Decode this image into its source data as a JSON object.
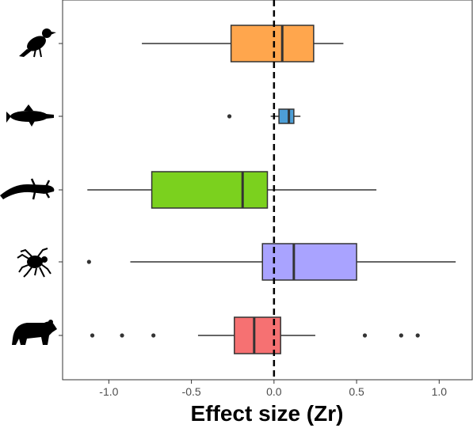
{
  "chart_data": {
    "type": "boxplot",
    "orientation": "horizontal",
    "title": "",
    "xlabel": "Effect size (Zr)",
    "ylabel": "",
    "xlim": [
      -1.28,
      1.2
    ],
    "xticks": [
      -1.0,
      -0.5,
      0.0,
      0.5,
      1.0
    ],
    "xtick_labels": [
      "-1.0",
      "-0.5",
      "0.0",
      "0.5",
      "1.0"
    ],
    "reference_line": {
      "x": 0,
      "style": "dashed"
    },
    "grid": false,
    "legend": "none",
    "series": [
      {
        "icon": "bird-icon",
        "color": "#FFA64D",
        "whisker_low": -0.8,
        "q1": -0.26,
        "median": 0.05,
        "q3": 0.24,
        "whisker_high": 0.42,
        "outliers": []
      },
      {
        "icon": "fish-icon",
        "color": "#4D9ED6",
        "whisker_low": -0.02,
        "q1": 0.03,
        "median": 0.09,
        "q3": 0.12,
        "whisker_high": 0.16,
        "outliers": [
          -0.27
        ]
      },
      {
        "icon": "salamander-icon",
        "color": "#7BD11E",
        "whisker_low": -1.13,
        "q1": -0.74,
        "median": -0.19,
        "q3": -0.04,
        "whisker_high": 0.62,
        "outliers": []
      },
      {
        "icon": "spider-icon",
        "color": "#A9A3FF",
        "whisker_low": -0.87,
        "q1": -0.07,
        "median": 0.12,
        "q3": 0.5,
        "whisker_high": 1.1,
        "outliers": [
          -1.12
        ]
      },
      {
        "icon": "bear-icon",
        "color": "#F67172",
        "whisker_low": -0.46,
        "q1": -0.24,
        "median": -0.12,
        "q3": 0.04,
        "whisker_high": 0.25,
        "outliers": [
          -1.1,
          -0.92,
          -0.73,
          0.55,
          0.77,
          0.87
        ]
      }
    ]
  }
}
